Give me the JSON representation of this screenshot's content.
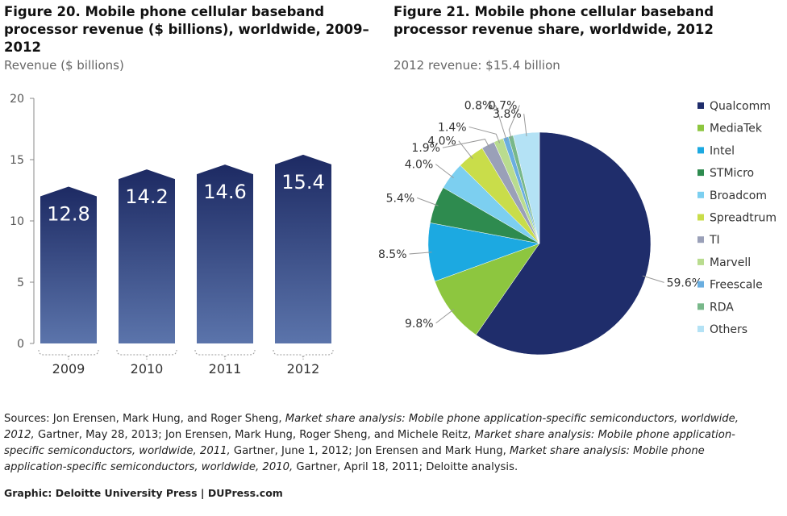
{
  "credit": "Graphic: Deloitte University Press  |  DUPress.com",
  "sources": [
    {
      "t": "Sources: Jon Erensen, Mark Hung, and Roger Sheng, ",
      "i": false
    },
    {
      "t": "Market share analysis: Mobile phone application-specific semiconductors, worldwide, 2012,",
      "i": true
    },
    {
      "t": " Gartner, May 28, 2013; Jon Erensen, Mark Hung, Roger Sheng, and Michele Reitz, ",
      "i": false
    },
    {
      "t": "Market share analysis: Mobile phone application-specific semiconductors, worldwide, 2011,",
      "i": true
    },
    {
      "t": " Gartner, June 1, 2012; Jon Erensen and Mark Hung, ",
      "i": false
    },
    {
      "t": "Market share analysis: Mobile phone application-specific semiconductors, worldwide, 2010,",
      "i": true
    },
    {
      "t": " Gartner, April 18, 2011; Deloitte analysis.",
      "i": false
    }
  ],
  "colors": {
    "bar_top": "#1d2a63",
    "bar_bottom": "#5b74ab",
    "axis": "#888888"
  },
  "chart_data": [
    {
      "type": "bar",
      "title": "Figure 20. Mobile phone cellular baseband processor revenue ($ billions), worldwide, 2009–2012",
      "subtitle": "Revenue ($ billions)",
      "categories": [
        "2009",
        "2010",
        "2011",
        "2012"
      ],
      "values": [
        12.8,
        14.2,
        14.6,
        15.4
      ],
      "value_labels": [
        "12.8",
        "14.2",
        "14.6",
        "15.4"
      ],
      "yticks": [
        "0",
        "5",
        "10",
        "15",
        "20"
      ],
      "ylim": [
        0,
        20
      ],
      "grid": false
    },
    {
      "type": "pie",
      "title": "Figure 21. Mobile phone cellular baseband processor revenue share, worldwide, 2012",
      "subtitle": "2012 revenue: $15.4 billion",
      "legend_position": "right",
      "slices": [
        {
          "name": "Qualcomm",
          "value": 59.6,
          "label": "59.6%",
          "color": "#1f2d6b"
        },
        {
          "name": "MediaTek",
          "value": 9.8,
          "label": "9.8%",
          "color": "#8dc63f"
        },
        {
          "name": "Intel",
          "value": 8.5,
          "label": "8.5%",
          "color": "#1ca9e1"
        },
        {
          "name": "STMicro",
          "value": 5.4,
          "label": "5.4%",
          "color": "#2e8b4f"
        },
        {
          "name": "Broadcom",
          "value": 4.0,
          "label": "4.0%",
          "color": "#7ccff0"
        },
        {
          "name": "Spreadtrum",
          "value": 4.0,
          "label": "4.0%",
          "color": "#c9dd4a"
        },
        {
          "name": "TI",
          "value": 1.9,
          "label": "1.9%",
          "color": "#9aa0b8"
        },
        {
          "name": "Marvell",
          "value": 1.4,
          "label": "1.4%",
          "color": "#b9dc8f"
        },
        {
          "name": "Freescale",
          "value": 0.8,
          "label": "0.8%",
          "color": "#6aaee0"
        },
        {
          "name": "RDA",
          "value": 0.7,
          "label": "0.7%",
          "color": "#78b88a"
        },
        {
          "name": "Others",
          "value": 3.8,
          "label": "3.8%",
          "color": "#b4e2f5"
        }
      ]
    }
  ]
}
